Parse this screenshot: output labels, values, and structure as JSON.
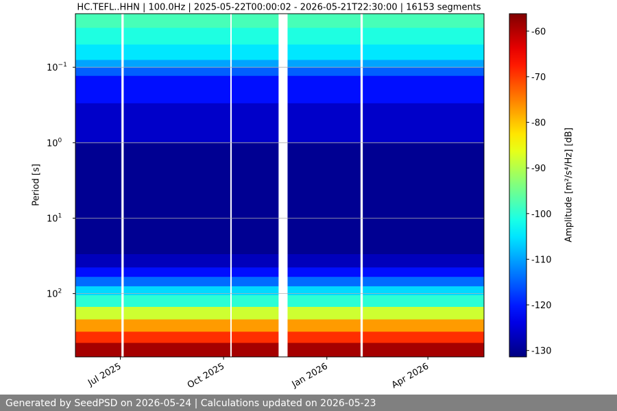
{
  "chart_data": {
    "type": "spectrogram",
    "title": "HC.TEFL..HHN | 100.0Hz | 2025-05-22T00:00:02 - 2026-05-21T22:30:00 | 16153 segments",
    "y_label": "Period [s]",
    "y_log": true,
    "y_inverted": true,
    "ylim": [
      0.0195,
      690
    ],
    "yticks": [
      {
        "value": 0.1,
        "label": "10",
        "exponent": "−1"
      },
      {
        "value": 1,
        "label": "10",
        "exponent": "0"
      },
      {
        "value": 10,
        "label": "10",
        "exponent": "1"
      },
      {
        "value": 100,
        "label": "10",
        "exponent": "2"
      }
    ],
    "grid": true,
    "xlim": [
      "2025-05-22",
      "2026-05-21"
    ],
    "xticks": [
      {
        "value": "2025-07",
        "label": "Jul 2025"
      },
      {
        "value": "2025-10",
        "label": "Oct 2025"
      },
      {
        "value": "2026-01",
        "label": "Jan 2026"
      },
      {
        "value": "2026-04",
        "label": "Apr 2026"
      }
    ],
    "period_edges": [
      0.0195,
      0.03,
      0.05,
      0.08,
      0.1,
      0.13,
      0.3,
      1,
      30,
      45,
      60,
      80,
      105,
      150,
      220,
      320,
      450,
      690
    ],
    "amplitudes": [
      -98,
      -101,
      -105,
      -110,
      -115,
      -121,
      -126,
      -130,
      -127,
      -121,
      -114,
      -106,
      -100,
      -88,
      -77,
      -69,
      -59
    ],
    "gaps": [
      [
        "2025-07-02",
        "2025-07-04"
      ],
      [
        "2025-10-07",
        "2025-10-08"
      ],
      [
        "2025-11-19",
        "2025-11-27"
      ],
      [
        "2026-01-31",
        "2026-02-02"
      ]
    ],
    "colormap": "jet",
    "clim": [
      -131.4,
      -56.2
    ],
    "cticks": [
      -60,
      -70,
      -80,
      -90,
      -100,
      -110,
      -120,
      -130
    ],
    "c_label": "Amplitude [m²/s⁴/Hz] [dB]"
  },
  "footer": "Generated by SeedPSD on 2026-05-24 | Calculations updated on 2026-05-23"
}
